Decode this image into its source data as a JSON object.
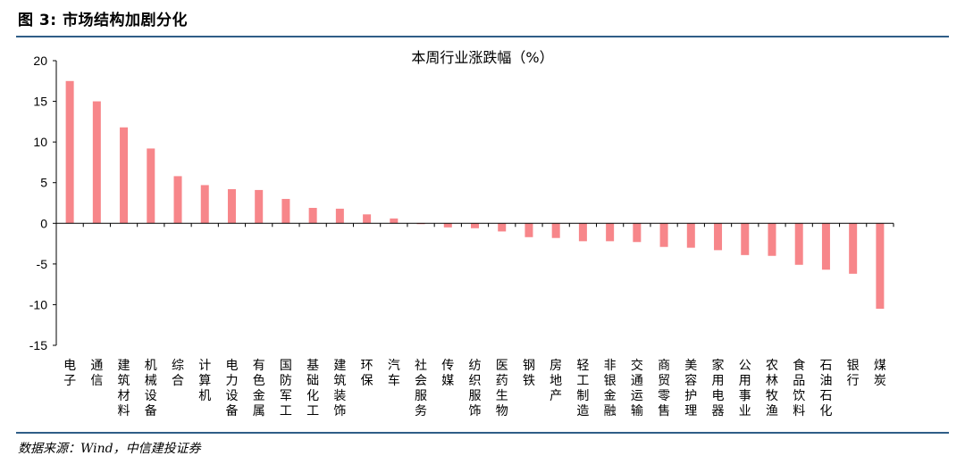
{
  "header": {
    "figure_title": "图 3: 市场结构加剧分化"
  },
  "footer": {
    "source": "数据来源：Wind，中信建投证券"
  },
  "colors": {
    "bar": "#f7868a",
    "rule": "#2f5d87",
    "axis": "#000000"
  },
  "chart_data": {
    "type": "bar",
    "title": "本周行业涨跌幅（%）",
    "xlabel": "",
    "ylabel": "",
    "ylim": [
      -15,
      20
    ],
    "yticks": [
      20,
      15,
      10,
      5,
      0,
      -5,
      -10,
      -15
    ],
    "grid": false,
    "legend": "none",
    "categories": [
      "电子",
      "通信",
      "建筑材料",
      "机械设备",
      "综合",
      "计算机",
      "电力设备",
      "有色金属",
      "国防军工",
      "基础化工",
      "建筑装饰",
      "环保",
      "汽车",
      "社会服务",
      "传媒",
      "纺织服饰",
      "医药生物",
      "钢铁",
      "房地产",
      "轻工制造",
      "非银金融",
      "交通运输",
      "商贸零售",
      "美容护理",
      "家用电器",
      "公用事业",
      "农林牧渔",
      "食品饮料",
      "石油石化",
      "银行",
      "煤炭"
    ],
    "values": [
      17.5,
      15.0,
      11.8,
      9.2,
      5.8,
      4.7,
      4.2,
      4.1,
      3.0,
      1.9,
      1.8,
      1.1,
      0.6,
      -0.1,
      -0.5,
      -0.6,
      -1.0,
      -1.7,
      -1.8,
      -2.2,
      -2.2,
      -2.3,
      -2.9,
      -3.0,
      -3.3,
      -3.9,
      -4.0,
      -5.1,
      -5.7,
      -6.2,
      -10.5
    ]
  }
}
